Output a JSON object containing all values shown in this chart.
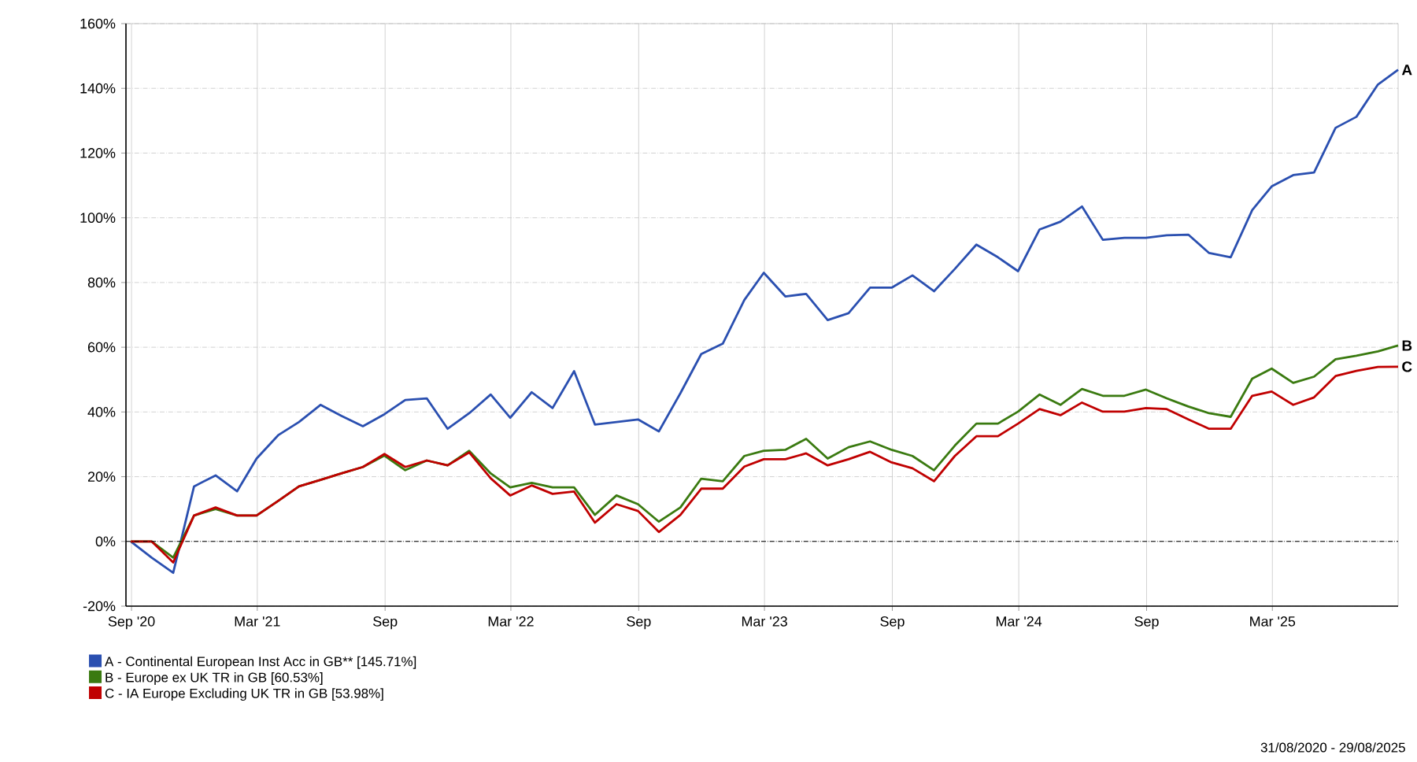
{
  "chart_data": {
    "type": "line",
    "x": [
      "2020-08-31",
      "2020-09-30",
      "2020-10-31",
      "2020-11-30",
      "2020-12-31",
      "2021-01-31",
      "2021-02-28",
      "2021-03-31",
      "2021-04-30",
      "2021-05-31",
      "2021-06-30",
      "2021-07-31",
      "2021-08-31",
      "2021-09-30",
      "2021-10-31",
      "2021-11-30",
      "2021-12-31",
      "2022-01-31",
      "2022-02-28",
      "2022-03-31",
      "2022-04-30",
      "2022-05-31",
      "2022-06-30",
      "2022-07-31",
      "2022-08-31",
      "2022-09-30",
      "2022-10-31",
      "2022-11-30",
      "2022-12-31",
      "2023-01-31",
      "2023-02-28",
      "2023-03-31",
      "2023-04-30",
      "2023-05-31",
      "2023-06-30",
      "2023-07-31",
      "2023-08-31",
      "2023-09-30",
      "2023-10-31",
      "2023-11-30",
      "2023-12-31",
      "2024-01-31",
      "2024-02-29",
      "2024-03-31",
      "2024-04-30",
      "2024-05-31",
      "2024-06-30",
      "2024-07-31",
      "2024-08-31",
      "2024-09-30",
      "2024-10-31",
      "2024-11-30",
      "2024-12-31",
      "2025-01-31",
      "2025-02-28",
      "2025-03-31",
      "2025-04-30",
      "2025-05-31",
      "2025-06-30",
      "2025-07-31",
      "2025-08-29"
    ],
    "series": [
      {
        "name": "A - Continental European Inst Acc in GB** [145.71%]",
        "color": "#2a4fb0",
        "values": [
          0,
          -5,
          -9.7,
          17,
          20.4,
          15.5,
          25.6,
          32.8,
          36.9,
          42.2,
          38.8,
          35.6,
          39.3,
          43.7,
          44.2,
          34.8,
          39.6,
          45.4,
          38.2,
          46.1,
          41.2,
          52.6,
          36.1,
          36.9,
          37.7,
          34,
          45.8,
          57.9,
          61.1,
          74.6,
          83,
          75.7,
          76.5,
          68.4,
          70.5,
          78.4,
          78.4,
          82.2,
          77.3,
          84.2,
          91.7,
          87.8,
          83.5,
          96.4,
          98.8,
          103.5,
          93.2,
          93.8,
          93.8,
          94.6,
          94.8,
          89.1,
          87.8,
          102.4,
          109.7,
          113.2,
          114,
          127.8,
          131.2,
          141.2,
          145.71
        ]
      },
      {
        "name": "B - Europe ex UK TR in GB [60.53%]",
        "color": "#3a7a10",
        "values": [
          0,
          0,
          -5,
          8,
          10,
          8,
          8,
          12.5,
          17,
          19,
          21,
          23,
          26.5,
          22,
          25,
          23.5,
          28,
          21,
          16.7,
          18.1,
          16.7,
          16.7,
          8.2,
          14.2,
          11.5,
          6.1,
          10.5,
          19.4,
          18.6,
          26.4,
          28,
          28.3,
          31.7,
          25.6,
          29.1,
          30.9,
          28.3,
          26.4,
          22,
          29.6,
          36.4,
          36.4,
          40.1,
          45.4,
          42.2,
          47.1,
          45,
          45,
          46.9,
          44.2,
          41.7,
          39.6,
          38.5,
          50.3,
          53.4,
          49,
          50.9,
          56.3,
          57.4,
          58.7,
          60.53
        ]
      },
      {
        "name": "C - IA Europe Excluding UK TR in GB [53.98%]",
        "color": "#c00000",
        "values": [
          0,
          0,
          -6.5,
          8,
          10.5,
          8,
          8,
          12.5,
          17,
          19,
          21,
          23,
          27,
          23,
          25,
          23.5,
          27.5,
          19.5,
          14.2,
          17.3,
          14.7,
          15.4,
          5.8,
          11.5,
          9.4,
          2.9,
          8.2,
          16.3,
          16.3,
          23.1,
          25.4,
          25.4,
          27.2,
          23.5,
          25.4,
          27.7,
          24.4,
          22.6,
          18.6,
          26.4,
          32.5,
          32.5,
          36.4,
          40.9,
          39,
          42.9,
          40.1,
          40.1,
          41.2,
          40.9,
          37.7,
          34.8,
          34.8,
          45,
          46.3,
          42.2,
          44.5,
          51.1,
          52.7,
          53.9,
          53.98
        ]
      }
    ],
    "xlim": [
      "2020-08-24",
      "2025-08-29"
    ],
    "xticks": [
      {
        "value": "2020-09-01",
        "label": "Sep '20"
      },
      {
        "value": "2021-03-01",
        "label": "Mar '21"
      },
      {
        "value": "2021-09-01",
        "label": "Sep"
      },
      {
        "value": "2022-03-01",
        "label": "Mar '22"
      },
      {
        "value": "2022-09-01",
        "label": "Sep"
      },
      {
        "value": "2023-03-01",
        "label": "Mar '23"
      },
      {
        "value": "2023-09-01",
        "label": "Sep"
      },
      {
        "value": "2024-03-01",
        "label": "Mar '24"
      },
      {
        "value": "2024-09-01",
        "label": "Sep"
      },
      {
        "value": "2025-03-01",
        "label": "Mar '25"
      }
    ],
    "ylim": [
      -20,
      160
    ],
    "yticks": [
      {
        "value": -20,
        "label": "-20%"
      },
      {
        "value": 0,
        "label": "0%"
      },
      {
        "value": 20,
        "label": "20%"
      },
      {
        "value": 40,
        "label": "40%"
      },
      {
        "value": 60,
        "label": "60%"
      },
      {
        "value": 80,
        "label": "80%"
      },
      {
        "value": 100,
        "label": "100%"
      },
      {
        "value": 120,
        "label": "120%"
      },
      {
        "value": 140,
        "label": "140%"
      },
      {
        "value": 160,
        "label": "160%"
      }
    ],
    "ref_lines": [
      {
        "axis": "y",
        "value": 0,
        "color": "#000000",
        "line_style": "dotted"
      }
    ],
    "annotations": [
      {
        "text": "A",
        "x": "2025-08-29",
        "y": 145.71
      },
      {
        "text": "B",
        "x": "2025-08-29",
        "y": 60.53
      },
      {
        "text": "C",
        "x": "2025-08-29",
        "y": 53.98
      },
      "31/08/2020 - 29/08/2025"
    ],
    "grid": true,
    "legend": "bottom left",
    "marker": "none",
    "line_style": "solid"
  }
}
